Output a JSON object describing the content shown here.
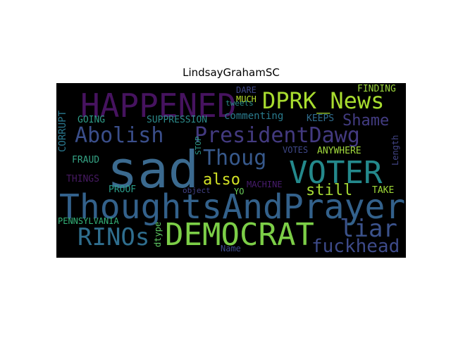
{
  "chart_data": {
    "type": "wordcloud",
    "title": "LindsayGrahamSC",
    "background": "#000000",
    "words": [
      {
        "text": "sad",
        "color": "#3b6a8f"
      },
      {
        "text": "ThoughtsAndPrayers",
        "color": "#33618b"
      },
      {
        "text": "HAPPENED",
        "color": "#46135f"
      },
      {
        "text": "DEMOCRAT",
        "color": "#7cce47"
      },
      {
        "text": "VOTER",
        "color": "#24898c"
      },
      {
        "text": "DPRK_News",
        "color": "#a8dc2f"
      },
      {
        "text": "Abolish",
        "color": "#3a4e8a"
      },
      {
        "text": "PresidentDawg",
        "color": "#433a80"
      },
      {
        "text": "Thoug",
        "color": "#37598c"
      },
      {
        "text": "RINOs",
        "color": "#2f6e8e"
      },
      {
        "text": "liar",
        "color": "#3b528b"
      },
      {
        "text": "fuckhead",
        "color": "#3d4a89"
      },
      {
        "text": "Shame",
        "color": "#433c82"
      },
      {
        "text": "still",
        "color": "#a6da34"
      },
      {
        "text": "also",
        "color": "#d2e125"
      },
      {
        "text": "CORRUPT",
        "color": "#2a788e"
      },
      {
        "text": "SUPPRESSION",
        "color": "#2c8a8a"
      },
      {
        "text": "GOING",
        "color": "#2f9c88"
      },
      {
        "text": "commenting",
        "color": "#2a7b8e"
      },
      {
        "text": "KEEPS",
        "color": "#306d8e"
      },
      {
        "text": "FINDING",
        "color": "#9ad43a"
      },
      {
        "text": "DARE",
        "color": "#3e4788"
      },
      {
        "text": "MUCH",
        "color": "#b5de2b"
      },
      {
        "text": "FRAUD",
        "color": "#35a485"
      },
      {
        "text": "THINGS",
        "color": "#471a63"
      },
      {
        "text": "PROOF",
        "color": "#2a9d8a"
      },
      {
        "text": "STOP",
        "color": "#2c9786"
      },
      {
        "text": "VOTES",
        "color": "#3f4889"
      },
      {
        "text": "ANYWHERE",
        "color": "#a0d83c"
      },
      {
        "text": "Length",
        "color": "#424485"
      },
      {
        "text": "MACHINE",
        "color": "#481c6e"
      },
      {
        "text": "YO",
        "color": "#6ccd5a"
      },
      {
        "text": "TAKE",
        "color": "#9fd938"
      },
      {
        "text": "object",
        "color": "#424185"
      },
      {
        "text": "tweets",
        "color": "#2b8d8c"
      },
      {
        "text": "PENNSYLVANIA",
        "color": "#34b279"
      },
      {
        "text": "dtype",
        "color": "#5ec962"
      },
      {
        "text": "Name",
        "color": "#3e4a89"
      }
    ]
  }
}
